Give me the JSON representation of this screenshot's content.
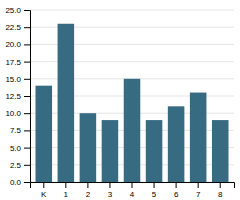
{
  "chart_data": {
    "type": "bar",
    "categories": [
      "K",
      "1",
      "2",
      "3",
      "4",
      "5",
      "6",
      "7",
      "8"
    ],
    "values": [
      14,
      23,
      10,
      9,
      15,
      9,
      11,
      13,
      9
    ],
    "color": "#376b82",
    "ylim": [
      0,
      25
    ],
    "yticks": [
      {
        "value": 0,
        "label": "0.0"
      },
      2.5,
      {
        "value": 5,
        "label": "5.0"
      },
      7.5,
      {
        "value": 10,
        "label": "10.0"
      },
      12.5,
      {
        "value": 15,
        "label": "15.0"
      },
      17.5,
      {
        "value": 20,
        "label": "20.0"
      },
      22.5,
      {
        "value": 25,
        "label": "25.0"
      }
    ],
    "grid": true
  }
}
